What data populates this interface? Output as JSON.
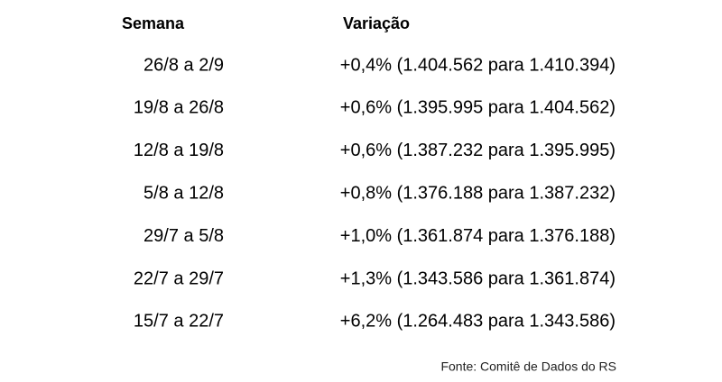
{
  "table": {
    "headers": [
      "Semana",
      "Variação"
    ],
    "rows": [
      [
        "26/8 a 2/9",
        "+0,4% (1.404.562 para 1.410.394)"
      ],
      [
        "19/8 a 26/8",
        "+0,6% (1.395.995 para 1.404.562)"
      ],
      [
        "12/8 a 19/8",
        "+0,6% (1.387.232 para 1.395.995)"
      ],
      [
        "5/8 a 12/8",
        "+0,8% (1.376.188 para 1.387.232)"
      ],
      [
        "29/7 a 5/8",
        "+1,0% (1.361.874 para 1.376.188)"
      ],
      [
        "22/7 a 29/7",
        "+1,3% (1.343.586 para 1.361.874)"
      ],
      [
        "15/7 a 22/7",
        "+6,2% (1.264.483 para 1.343.586)"
      ]
    ]
  },
  "source": "Fonte: Comitê de Dados do RS"
}
